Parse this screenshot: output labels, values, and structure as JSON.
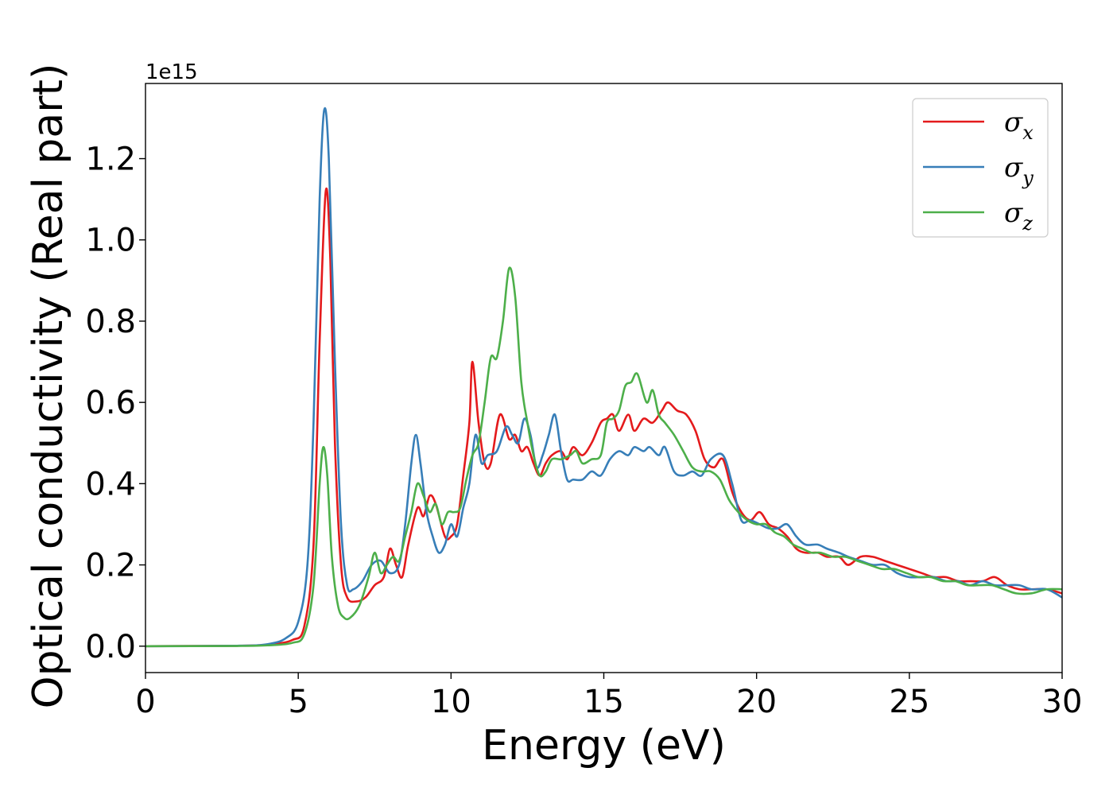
{
  "chart_data": {
    "type": "line",
    "xlabel": "Energy (eV)",
    "ylabel": "Optical conductivity (Real part)",
    "y_offset_label": "1e15",
    "y_scale": 1000000000000000.0,
    "xlim": [
      0,
      30
    ],
    "ylim": [
      -0.065,
      1.385
    ],
    "x_ticks": [
      0,
      5,
      10,
      15,
      20,
      25,
      30
    ],
    "x_tick_labels": [
      "0",
      "5",
      "10",
      "15",
      "20",
      "25",
      "30"
    ],
    "y_ticks": [
      0.0,
      0.2,
      0.4,
      0.6,
      0.8,
      1.0,
      1.2
    ],
    "y_tick_labels": [
      "0.0",
      "0.2",
      "0.4",
      "0.6",
      "0.8",
      "1.0",
      "1.2"
    ],
    "grid": false,
    "legend_position": "top-right",
    "series": [
      {
        "name": "σx",
        "symbol": "σ",
        "subscript": "x",
        "color": "#e41a1c",
        "points": [
          [
            0,
            0
          ],
          [
            3,
            0.001
          ],
          [
            4,
            0.004
          ],
          [
            4.8,
            0.015
          ],
          [
            5.2,
            0.05
          ],
          [
            5.5,
            0.25
          ],
          [
            5.7,
            0.75
          ],
          [
            5.9,
            1.12
          ],
          [
            6.05,
            0.95
          ],
          [
            6.2,
            0.5
          ],
          [
            6.4,
            0.2
          ],
          [
            6.6,
            0.12
          ],
          [
            6.9,
            0.11
          ],
          [
            7.2,
            0.12
          ],
          [
            7.5,
            0.15
          ],
          [
            7.8,
            0.17
          ],
          [
            8.0,
            0.24
          ],
          [
            8.2,
            0.2
          ],
          [
            8.4,
            0.17
          ],
          [
            8.6,
            0.25
          ],
          [
            8.9,
            0.34
          ],
          [
            9.1,
            0.32
          ],
          [
            9.3,
            0.37
          ],
          [
            9.5,
            0.35
          ],
          [
            9.8,
            0.27
          ],
          [
            10.0,
            0.27
          ],
          [
            10.2,
            0.3
          ],
          [
            10.4,
            0.42
          ],
          [
            10.6,
            0.55
          ],
          [
            10.7,
            0.7
          ],
          [
            10.9,
            0.55
          ],
          [
            11.1,
            0.45
          ],
          [
            11.3,
            0.45
          ],
          [
            11.6,
            0.57
          ],
          [
            11.9,
            0.51
          ],
          [
            12.1,
            0.52
          ],
          [
            12.3,
            0.48
          ],
          [
            12.5,
            0.49
          ],
          [
            12.7,
            0.45
          ],
          [
            12.9,
            0.42
          ],
          [
            13.1,
            0.45
          ],
          [
            13.3,
            0.47
          ],
          [
            13.6,
            0.48
          ],
          [
            13.8,
            0.46
          ],
          [
            14.0,
            0.49
          ],
          [
            14.3,
            0.47
          ],
          [
            14.6,
            0.5
          ],
          [
            14.9,
            0.55
          ],
          [
            15.1,
            0.56
          ],
          [
            15.3,
            0.57
          ],
          [
            15.5,
            0.53
          ],
          [
            15.8,
            0.57
          ],
          [
            16.0,
            0.53
          ],
          [
            16.3,
            0.56
          ],
          [
            16.6,
            0.55
          ],
          [
            16.9,
            0.58
          ],
          [
            17.1,
            0.6
          ],
          [
            17.4,
            0.58
          ],
          [
            17.7,
            0.57
          ],
          [
            18.0,
            0.53
          ],
          [
            18.3,
            0.46
          ],
          [
            18.6,
            0.44
          ],
          [
            18.9,
            0.46
          ],
          [
            19.2,
            0.38
          ],
          [
            19.5,
            0.33
          ],
          [
            19.8,
            0.31
          ],
          [
            20.1,
            0.33
          ],
          [
            20.4,
            0.3
          ],
          [
            20.7,
            0.29
          ],
          [
            21.0,
            0.27
          ],
          [
            21.3,
            0.24
          ],
          [
            21.6,
            0.23
          ],
          [
            22.0,
            0.23
          ],
          [
            22.3,
            0.22
          ],
          [
            22.7,
            0.22
          ],
          [
            23.0,
            0.2
          ],
          [
            23.4,
            0.22
          ],
          [
            23.8,
            0.22
          ],
          [
            24.2,
            0.21
          ],
          [
            24.6,
            0.2
          ],
          [
            25.0,
            0.19
          ],
          [
            25.4,
            0.18
          ],
          [
            25.8,
            0.17
          ],
          [
            26.2,
            0.17
          ],
          [
            26.6,
            0.16
          ],
          [
            27.0,
            0.16
          ],
          [
            27.4,
            0.16
          ],
          [
            27.8,
            0.17
          ],
          [
            28.2,
            0.15
          ],
          [
            28.6,
            0.14
          ],
          [
            29.0,
            0.14
          ],
          [
            29.5,
            0.14
          ],
          [
            30,
            0.13
          ]
        ]
      },
      {
        "name": "σy",
        "symbol": "σ",
        "subscript": "y",
        "color": "#377eb8",
        "points": [
          [
            0,
            0
          ],
          [
            3,
            0.001
          ],
          [
            4,
            0.005
          ],
          [
            4.6,
            0.02
          ],
          [
            5.0,
            0.06
          ],
          [
            5.3,
            0.2
          ],
          [
            5.5,
            0.55
          ],
          [
            5.7,
            1.1
          ],
          [
            5.85,
            1.32
          ],
          [
            6.0,
            1.2
          ],
          [
            6.2,
            0.7
          ],
          [
            6.4,
            0.3
          ],
          [
            6.6,
            0.15
          ],
          [
            6.8,
            0.14
          ],
          [
            7.1,
            0.16
          ],
          [
            7.4,
            0.2
          ],
          [
            7.7,
            0.21
          ],
          [
            8.0,
            0.18
          ],
          [
            8.3,
            0.2
          ],
          [
            8.5,
            0.3
          ],
          [
            8.7,
            0.45
          ],
          [
            8.85,
            0.52
          ],
          [
            9.0,
            0.45
          ],
          [
            9.2,
            0.33
          ],
          [
            9.4,
            0.27
          ],
          [
            9.6,
            0.23
          ],
          [
            9.8,
            0.25
          ],
          [
            10.0,
            0.3
          ],
          [
            10.2,
            0.27
          ],
          [
            10.4,
            0.34
          ],
          [
            10.6,
            0.4
          ],
          [
            10.8,
            0.52
          ],
          [
            11.0,
            0.45
          ],
          [
            11.2,
            0.47
          ],
          [
            11.5,
            0.48
          ],
          [
            11.8,
            0.54
          ],
          [
            12.0,
            0.52
          ],
          [
            12.2,
            0.5
          ],
          [
            12.4,
            0.56
          ],
          [
            12.6,
            0.52
          ],
          [
            12.8,
            0.44
          ],
          [
            13.0,
            0.47
          ],
          [
            13.2,
            0.52
          ],
          [
            13.4,
            0.57
          ],
          [
            13.6,
            0.48
          ],
          [
            13.8,
            0.41
          ],
          [
            14.0,
            0.41
          ],
          [
            14.3,
            0.41
          ],
          [
            14.6,
            0.43
          ],
          [
            14.9,
            0.42
          ],
          [
            15.2,
            0.46
          ],
          [
            15.5,
            0.48
          ],
          [
            15.8,
            0.47
          ],
          [
            16.0,
            0.49
          ],
          [
            16.3,
            0.48
          ],
          [
            16.5,
            0.49
          ],
          [
            16.8,
            0.47
          ],
          [
            17.0,
            0.49
          ],
          [
            17.3,
            0.43
          ],
          [
            17.6,
            0.42
          ],
          [
            17.9,
            0.43
          ],
          [
            18.2,
            0.42
          ],
          [
            18.5,
            0.46
          ],
          [
            18.9,
            0.47
          ],
          [
            19.2,
            0.4
          ],
          [
            19.5,
            0.31
          ],
          [
            19.8,
            0.31
          ],
          [
            20.1,
            0.3
          ],
          [
            20.4,
            0.29
          ],
          [
            20.7,
            0.29
          ],
          [
            21.0,
            0.3
          ],
          [
            21.3,
            0.27
          ],
          [
            21.6,
            0.25
          ],
          [
            22.0,
            0.25
          ],
          [
            22.3,
            0.24
          ],
          [
            22.7,
            0.23
          ],
          [
            23.0,
            0.22
          ],
          [
            23.4,
            0.21
          ],
          [
            23.8,
            0.2
          ],
          [
            24.2,
            0.2
          ],
          [
            24.6,
            0.18
          ],
          [
            25.0,
            0.17
          ],
          [
            25.4,
            0.17
          ],
          [
            25.8,
            0.17
          ],
          [
            26.2,
            0.16
          ],
          [
            26.6,
            0.16
          ],
          [
            27.0,
            0.15
          ],
          [
            27.4,
            0.16
          ],
          [
            27.8,
            0.15
          ],
          [
            28.2,
            0.15
          ],
          [
            28.6,
            0.15
          ],
          [
            29.0,
            0.14
          ],
          [
            29.5,
            0.14
          ],
          [
            30,
            0.12
          ]
        ]
      },
      {
        "name": "σz",
        "symbol": "σ",
        "subscript": "z",
        "color": "#4daf4a",
        "points": [
          [
            0,
            0
          ],
          [
            3,
            0.0005
          ],
          [
            4,
            0.002
          ],
          [
            4.8,
            0.008
          ],
          [
            5.2,
            0.03
          ],
          [
            5.5,
            0.15
          ],
          [
            5.7,
            0.4
          ],
          [
            5.82,
            0.49
          ],
          [
            5.95,
            0.42
          ],
          [
            6.1,
            0.22
          ],
          [
            6.3,
            0.1
          ],
          [
            6.5,
            0.07
          ],
          [
            6.7,
            0.07
          ],
          [
            7.0,
            0.1
          ],
          [
            7.3,
            0.17
          ],
          [
            7.5,
            0.23
          ],
          [
            7.7,
            0.18
          ],
          [
            7.9,
            0.2
          ],
          [
            8.1,
            0.22
          ],
          [
            8.3,
            0.21
          ],
          [
            8.5,
            0.27
          ],
          [
            8.7,
            0.33
          ],
          [
            8.9,
            0.4
          ],
          [
            9.1,
            0.37
          ],
          [
            9.3,
            0.33
          ],
          [
            9.5,
            0.35
          ],
          [
            9.7,
            0.3
          ],
          [
            9.9,
            0.33
          ],
          [
            10.1,
            0.33
          ],
          [
            10.3,
            0.34
          ],
          [
            10.5,
            0.41
          ],
          [
            10.7,
            0.47
          ],
          [
            10.9,
            0.5
          ],
          [
            11.1,
            0.6
          ],
          [
            11.3,
            0.71
          ],
          [
            11.5,
            0.71
          ],
          [
            11.7,
            0.8
          ],
          [
            11.9,
            0.93
          ],
          [
            12.1,
            0.86
          ],
          [
            12.3,
            0.65
          ],
          [
            12.5,
            0.55
          ],
          [
            12.7,
            0.47
          ],
          [
            12.9,
            0.42
          ],
          [
            13.1,
            0.43
          ],
          [
            13.3,
            0.46
          ],
          [
            13.6,
            0.46
          ],
          [
            13.9,
            0.47
          ],
          [
            14.1,
            0.48
          ],
          [
            14.3,
            0.45
          ],
          [
            14.6,
            0.46
          ],
          [
            14.9,
            0.47
          ],
          [
            15.1,
            0.55
          ],
          [
            15.3,
            0.56
          ],
          [
            15.5,
            0.58
          ],
          [
            15.7,
            0.64
          ],
          [
            15.9,
            0.65
          ],
          [
            16.1,
            0.67
          ],
          [
            16.4,
            0.6
          ],
          [
            16.6,
            0.63
          ],
          [
            16.8,
            0.57
          ],
          [
            17.0,
            0.55
          ],
          [
            17.3,
            0.52
          ],
          [
            17.6,
            0.48
          ],
          [
            17.9,
            0.44
          ],
          [
            18.2,
            0.43
          ],
          [
            18.5,
            0.43
          ],
          [
            18.8,
            0.41
          ],
          [
            19.1,
            0.36
          ],
          [
            19.4,
            0.33
          ],
          [
            19.7,
            0.31
          ],
          [
            20.0,
            0.3
          ],
          [
            20.3,
            0.3
          ],
          [
            20.6,
            0.28
          ],
          [
            20.9,
            0.27
          ],
          [
            21.2,
            0.25
          ],
          [
            21.5,
            0.24
          ],
          [
            21.8,
            0.23
          ],
          [
            22.1,
            0.23
          ],
          [
            22.5,
            0.22
          ],
          [
            22.9,
            0.22
          ],
          [
            23.3,
            0.21
          ],
          [
            23.7,
            0.2
          ],
          [
            24.1,
            0.19
          ],
          [
            24.5,
            0.19
          ],
          [
            24.9,
            0.18
          ],
          [
            25.3,
            0.17
          ],
          [
            25.7,
            0.17
          ],
          [
            26.1,
            0.16
          ],
          [
            26.5,
            0.16
          ],
          [
            26.9,
            0.15
          ],
          [
            27.3,
            0.15
          ],
          [
            27.7,
            0.15
          ],
          [
            28.1,
            0.14
          ],
          [
            28.5,
            0.13
          ],
          [
            29.0,
            0.13
          ],
          [
            29.5,
            0.14
          ],
          [
            30,
            0.14
          ]
        ]
      }
    ]
  }
}
